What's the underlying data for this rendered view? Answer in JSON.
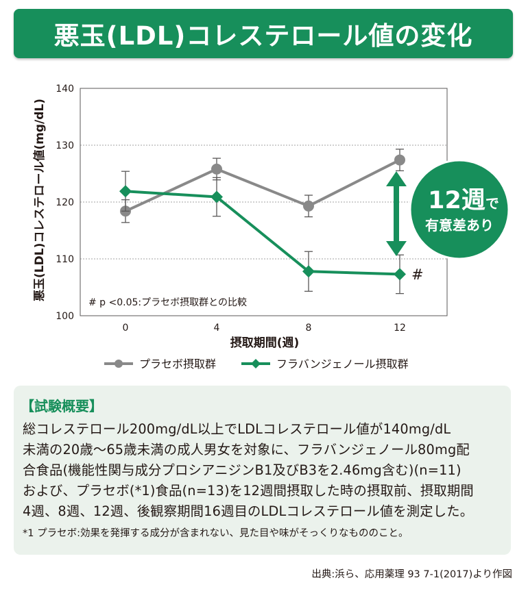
{
  "title": "悪玉(LDL)コレステロール値の変化",
  "colors": {
    "placebo": "#898989",
    "flavangenol": "#178f5b",
    "accent": "#178f5b",
    "summary_bg": "#ebf2ec"
  },
  "chart_data": {
    "type": "line",
    "title": "悪玉(LDL)コレステロール値の変化",
    "xlabel": "摂取期間(週)",
    "ylabel": "悪玉(LDL)コレステロール値(mg/dL)",
    "categories": [
      "0",
      "4",
      "8",
      "12"
    ],
    "yticks": [
      "100",
      "110",
      "120",
      "130",
      "140"
    ],
    "ylim": [
      100,
      140
    ],
    "grid": true,
    "series": [
      {
        "name": "プラセボ摂取群",
        "marker": "circle",
        "values": [
          118.4,
          125.8,
          119.3,
          127.4
        ],
        "error": [
          2.0,
          1.9,
          1.9,
          1.9
        ]
      },
      {
        "name": "フラバンジェノール摂取群",
        "marker": "diamond",
        "values": [
          121.9,
          120.9,
          107.8,
          107.3
        ],
        "error": [
          3.5,
          3.4,
          3.5,
          3.4
        ]
      }
    ],
    "significance_mark": "#",
    "footnote": "# p <0.05:プラセボ摂取群との比較",
    "badge_main": "12週",
    "badge_suffix": "で",
    "badge_sub": "有意差あり"
  },
  "summary": {
    "heading": "【試験概要】",
    "lines": [
      "総コレステロール200mg/dL以上でLDLコレステロール値が140mg/dL",
      "未満の20歳〜65歳未満の成人男女を対象に、フラバンジェノール80mg配",
      "合食品(機能性関与成分プロシアニジンB1及びB3を2.46mg含む)(n=11)",
      "および、プラセボ(*1)食品(n=13)を12週間摂取した時の摂取前、摂取期間",
      "4週、8週、12週、後観察期間16週目のLDLコレステロール値を測定した。"
    ],
    "note": "*1 プラセボ:効果を発揮する成分が含まれない、見た目や味がそっくりなもののこと。"
  },
  "source": "出典:浜ら、応用薬理 93 7-1(2017)より作図"
}
